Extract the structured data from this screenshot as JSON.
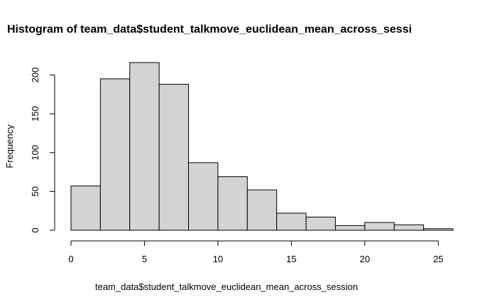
{
  "chart_data": {
    "type": "bar",
    "title": "Histogram of team_data$student_talkmove_euclidean_mean_across_sessi",
    "xlabel": "team_data$student_talkmove_euclidean_mean_across_session",
    "ylabel": "Frequency",
    "bin_edges": [
      0,
      2,
      4,
      6,
      8,
      10,
      12,
      14,
      16,
      18,
      20,
      22,
      24,
      26
    ],
    "values": [
      57,
      195,
      216,
      188,
      87,
      69,
      52,
      22,
      17,
      6,
      10,
      7,
      2
    ],
    "xlim": [
      0,
      26
    ],
    "ylim": [
      0,
      216
    ],
    "x_ticks": [
      "0",
      "5",
      "10",
      "15",
      "20",
      "25"
    ],
    "y_ticks": [
      "0",
      "50",
      "100",
      "150",
      "200"
    ],
    "x_tick_values": [
      0,
      5,
      10,
      15,
      20,
      25
    ],
    "y_tick_values": [
      0,
      50,
      100,
      150,
      200
    ],
    "grid": false,
    "bar_fill": "#d3d3d3",
    "bar_stroke": "#000000"
  }
}
